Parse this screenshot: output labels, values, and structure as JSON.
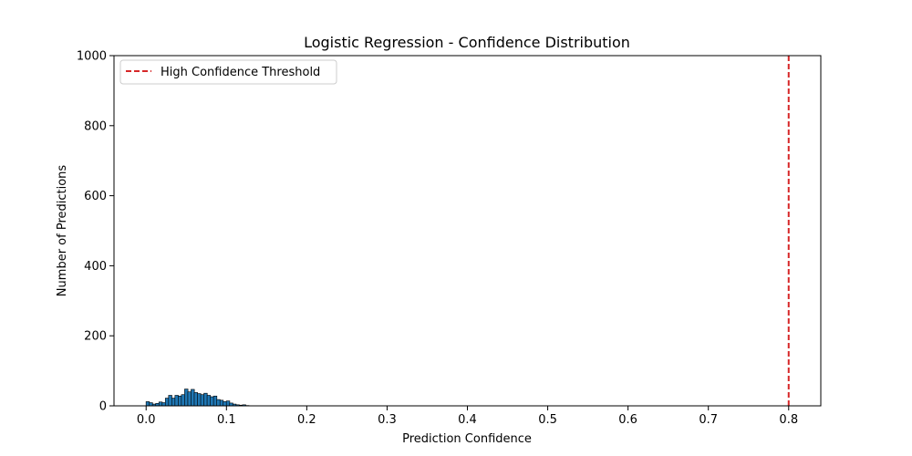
{
  "chart_data": {
    "type": "bar",
    "title": "Logistic Regression - Confidence Distribution",
    "xlabel": "Prediction Confidence",
    "ylabel": "Number of Predictions",
    "xlim": [
      -0.04,
      0.84
    ],
    "ylim": [
      0,
      1000
    ],
    "xticks": [
      0.0,
      0.1,
      0.2,
      0.3,
      0.4,
      0.5,
      0.6,
      0.7,
      0.8
    ],
    "xtick_labels": [
      "0.0",
      "0.1",
      "0.2",
      "0.3",
      "0.4",
      "0.5",
      "0.6",
      "0.7",
      "0.8"
    ],
    "yticks": [
      0,
      200,
      400,
      600,
      800,
      1000
    ],
    "ytick_labels": [
      "0",
      "200",
      "400",
      "600",
      "800",
      "1000"
    ],
    "grid": false,
    "legend_position": "upper-left",
    "bin_width": 0.0042,
    "bar_color": "#1f77b4",
    "bar_edge_color": "#000000",
    "bins": [
      {
        "x": 0.002,
        "count": 12
      },
      {
        "x": 0.006,
        "count": 9
      },
      {
        "x": 0.01,
        "count": 5
      },
      {
        "x": 0.014,
        "count": 7
      },
      {
        "x": 0.018,
        "count": 11
      },
      {
        "x": 0.022,
        "count": 9
      },
      {
        "x": 0.026,
        "count": 22
      },
      {
        "x": 0.03,
        "count": 30
      },
      {
        "x": 0.034,
        "count": 22
      },
      {
        "x": 0.038,
        "count": 30
      },
      {
        "x": 0.042,
        "count": 28
      },
      {
        "x": 0.046,
        "count": 32
      },
      {
        "x": 0.05,
        "count": 48
      },
      {
        "x": 0.054,
        "count": 40
      },
      {
        "x": 0.058,
        "count": 47
      },
      {
        "x": 0.062,
        "count": 38
      },
      {
        "x": 0.066,
        "count": 35
      },
      {
        "x": 0.07,
        "count": 32
      },
      {
        "x": 0.074,
        "count": 36
      },
      {
        "x": 0.078,
        "count": 30
      },
      {
        "x": 0.082,
        "count": 26
      },
      {
        "x": 0.086,
        "count": 28
      },
      {
        "x": 0.09,
        "count": 18
      },
      {
        "x": 0.094,
        "count": 16
      },
      {
        "x": 0.098,
        "count": 12
      },
      {
        "x": 0.102,
        "count": 14
      },
      {
        "x": 0.106,
        "count": 8
      },
      {
        "x": 0.11,
        "count": 5
      },
      {
        "x": 0.114,
        "count": 3
      },
      {
        "x": 0.118,
        "count": 2
      },
      {
        "x": 0.122,
        "count": 3
      },
      {
        "x": 0.126,
        "count": 1
      }
    ],
    "threshold": {
      "x": 0.8,
      "label": "High Confidence Threshold",
      "color": "#d62728",
      "style": "dashed"
    }
  }
}
